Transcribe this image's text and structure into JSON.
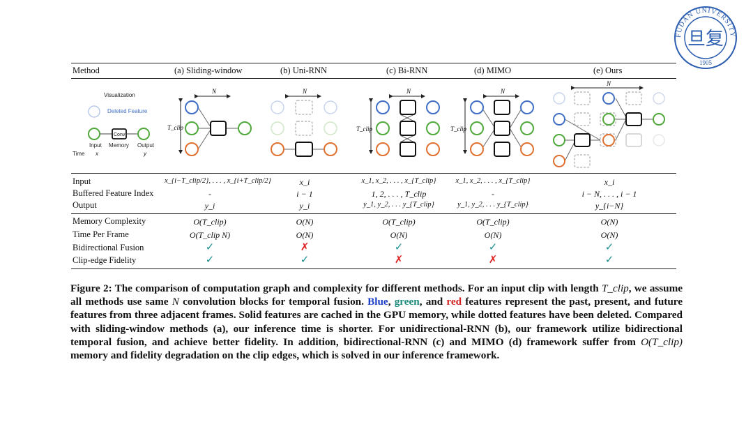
{
  "logo": {
    "text_top": "FUDAN UNIVERSITY",
    "year": "1905",
    "glyph": "旦复"
  },
  "table": {
    "headers": [
      "Method",
      "(a) Sliding-window",
      "(b) Uni-RNN",
      "(c) Bi-RNN",
      "(d) MIMO",
      "(e) Ours"
    ],
    "legend": {
      "visualization": "Visualization",
      "deleted_feature": "Deleted Feature",
      "conv": "Conv",
      "input": "Input",
      "memory": "Memory",
      "output": "Output",
      "time": "Time",
      "x": "x",
      "y": "y"
    },
    "diagram_labels": {
      "N": "N",
      "T_clip": "T_clip"
    },
    "rows_group1": [
      {
        "label": "Input",
        "cells": [
          "x_{i−T_clip/2}, . . . , x_{i+T_clip/2}",
          "x_i",
          "x_1, x_2, . . . , x_{T_clip}",
          "x_1, x_2, . . . , x_{T_clip}",
          "x_i"
        ]
      },
      {
        "label": "Buffered Feature Index",
        "cells": [
          "-",
          "i − 1",
          "1, 2, . . . , T_clip",
          "-",
          "i − N, . . . , i − 1"
        ]
      },
      {
        "label": "Output",
        "cells": [
          "y_i",
          "y_i",
          "y_1, y_2, . . . y_{T_clip}",
          "y_1, y_2, . . . y_{T_clip}",
          "y_{i−N}"
        ]
      }
    ],
    "rows_group2": [
      {
        "label": "Memory Complexity",
        "cells": [
          "O(T_clip)",
          "O(N)",
          "O(T_clip)",
          "O(T_clip)",
          "O(N)"
        ]
      },
      {
        "label": "Time Per Frame",
        "cells": [
          "O(T_clip N)",
          "O(N)",
          "O(N)",
          "O(N)",
          "O(N)"
        ]
      },
      {
        "label": "Bidirectional Fusion",
        "cells": [
          "✓",
          "✗",
          "✓",
          "✓",
          "✓"
        ]
      },
      {
        "label": "Clip-edge Fidelity",
        "cells": [
          "✓",
          "✓",
          "✗",
          "✗",
          "✓"
        ]
      }
    ]
  },
  "caption": {
    "part1": "Figure 2: The comparison of computation graph and complexity for different methods. For an input clip with length ",
    "tclip": "T_clip",
    "part2": ", we assume all methods use same ",
    "N": "N",
    "part3": " convolution blocks for temporal fusion. ",
    "blue": "Blue",
    "comma": ", ",
    "green": "green",
    "and": ", and ",
    "red": "red",
    "part4": " features represent the past, present, and future features from three adjacent frames. Solid features are cached in the GPU memory, while dotted features have been deleted. Compared with sliding-window methods (a), our inference time is shorter. For unidirectional-RNN (b), our framework utilize bidirectional temporal fusion, and achieve better fidelity. In addition, bidirectional-RNN (c) and MIMO (d) framework suffer from ",
    "otclip": "O(T_clip)",
    "part5": " memory and fidelity degradation on the clip edges, which is solved in our inference framework."
  },
  "colors": {
    "blue": "#3f6fc4",
    "green": "#4fa83a",
    "orange": "#e07030",
    "check": "#1a8f8f",
    "cross": "#e02020"
  }
}
